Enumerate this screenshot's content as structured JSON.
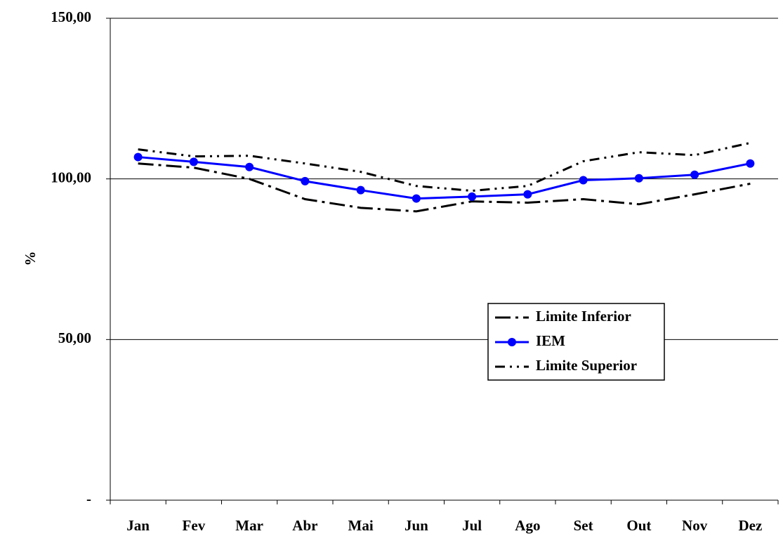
{
  "chart_data": {
    "type": "line",
    "y_label": "%",
    "categories": [
      "Jan",
      "Fev",
      "Mar",
      "Abr",
      "Mai",
      "Jun",
      "Jul",
      "Ago",
      "Set",
      "Out",
      "Nov",
      "Dez"
    ],
    "series": [
      {
        "name": "Limite Inferior",
        "color": "#000000",
        "style": "dashed",
        "values": [
          104.8,
          103.5,
          100.0,
          93.7,
          91.0,
          89.9,
          93.0,
          92.6,
          93.7,
          92.1,
          95.2,
          98.5
        ]
      },
      {
        "name": "IEM",
        "color": "#0000ff",
        "style": "solid",
        "marker": "circle",
        "values": [
          106.8,
          105.3,
          103.7,
          99.3,
          96.5,
          93.9,
          94.5,
          95.2,
          99.6,
          100.2,
          101.3,
          104.8
        ]
      },
      {
        "name": "Limite Superior",
        "color": "#000000",
        "style": "dash-dot",
        "values": [
          109.2,
          107.0,
          107.2,
          104.8,
          102.2,
          97.8,
          96.3,
          97.8,
          105.5,
          108.3,
          107.4,
          111.2
        ]
      }
    ],
    "ylim": [
      0,
      150
    ],
    "yticks": [
      {
        "value": 0,
        "label": "-"
      },
      {
        "value": 50,
        "label": "50,00"
      },
      {
        "value": 100,
        "label": "100,00"
      },
      {
        "value": 150,
        "label": "150,00"
      }
    ],
    "grid": true,
    "legend": "lower-right"
  }
}
